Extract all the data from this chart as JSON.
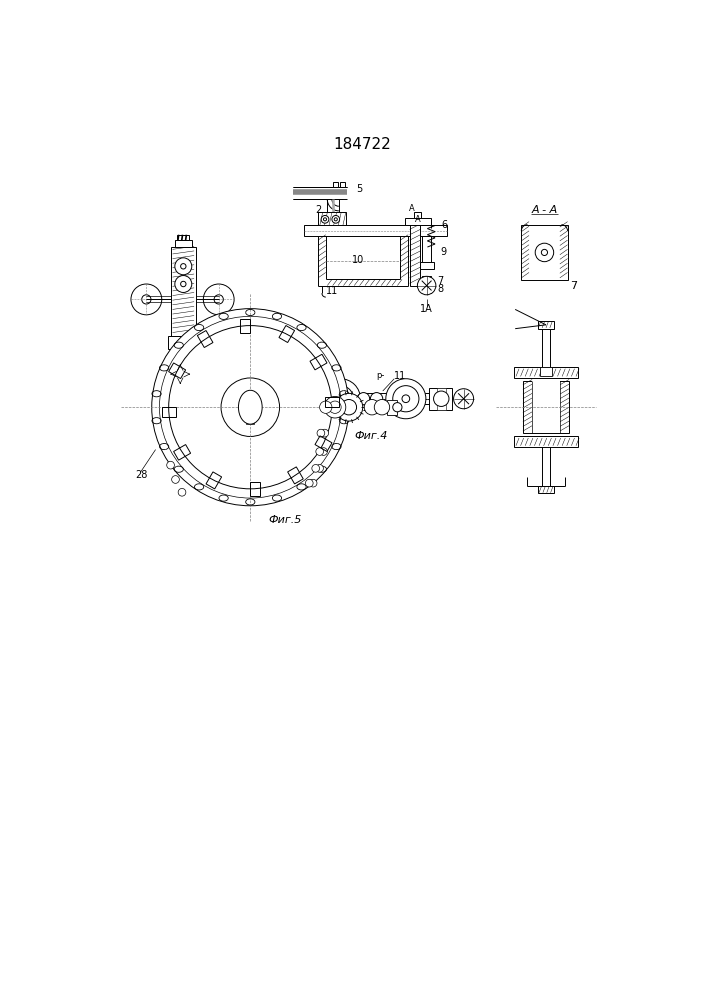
{
  "title": "184722",
  "title_fontsize": 11,
  "bg_color": "#ffffff",
  "line_color": "#000000",
  "fig4_label": "Фиг.4",
  "fig5_label": "Фиг.5",
  "aa_label": "А - А",
  "label_7_aa": "7",
  "label_28": "28"
}
